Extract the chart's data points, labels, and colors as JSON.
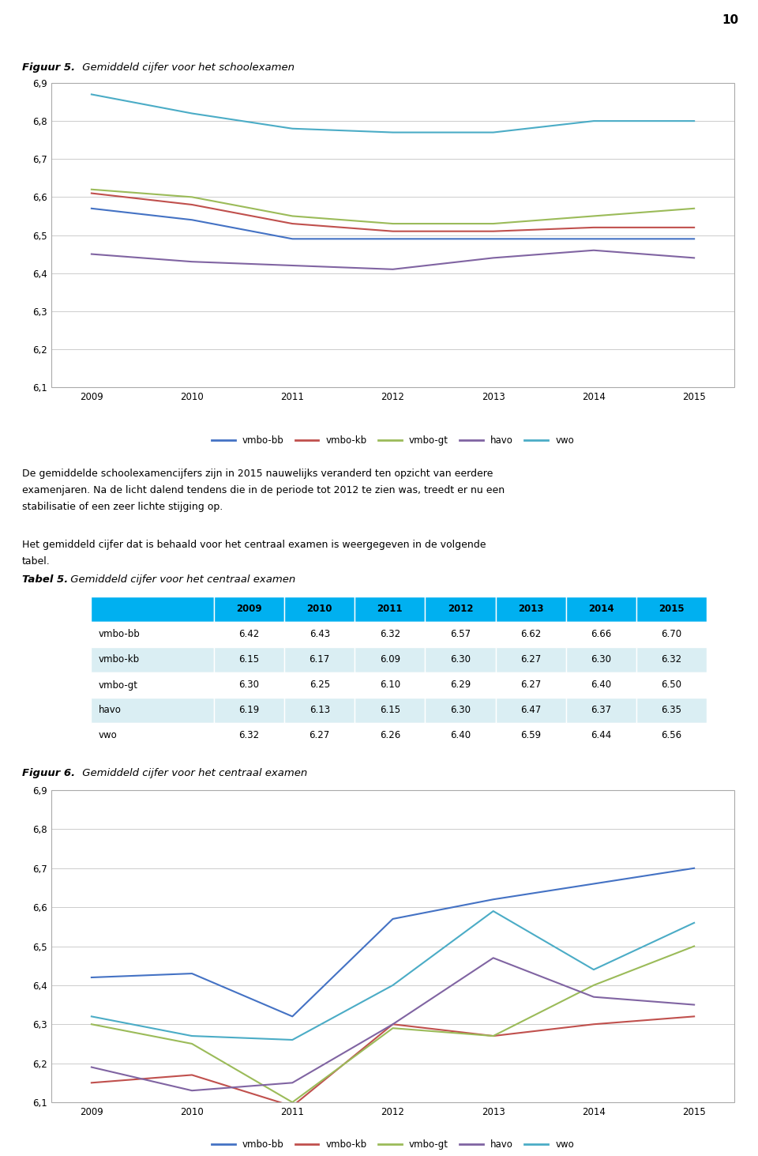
{
  "page_number": "10",
  "fig5_title_bold": "Figuur 5.",
  "fig5_title_rest": " Gemiddeld cijfer voor het schoolexamen",
  "fig6_title_bold": "Figuur 6.",
  "fig6_title_rest": " Gemiddeld cijfer voor het centraal examen",
  "tabel5_title_bold": "Tabel 5.",
  "tabel5_title_rest": " Gemiddeld cijfer voor het centraal examen",
  "years": [
    2009,
    2010,
    2011,
    2012,
    2013,
    2014,
    2015
  ],
  "series_colors": {
    "vmbo-bb": "#4472C4",
    "vmbo-kb": "#C0504D",
    "vmbo-gt": "#9BBB59",
    "havo": "#8064A2",
    "vwo": "#4BACC6"
  },
  "fig5_data": {
    "vmbo-bb": [
      6.57,
      6.54,
      6.49,
      6.49,
      6.49,
      6.49,
      6.49
    ],
    "vmbo-kb": [
      6.61,
      6.58,
      6.53,
      6.51,
      6.51,
      6.52,
      6.52
    ],
    "vmbo-gt": [
      6.62,
      6.6,
      6.55,
      6.53,
      6.53,
      6.55,
      6.57
    ],
    "havo": [
      6.45,
      6.43,
      6.42,
      6.41,
      6.44,
      6.46,
      6.44
    ],
    "vwo": [
      6.87,
      6.82,
      6.78,
      6.77,
      6.77,
      6.8,
      6.8
    ]
  },
  "fig6_data": {
    "vmbo-bb": [
      6.42,
      6.43,
      6.32,
      6.57,
      6.62,
      6.66,
      6.7
    ],
    "vmbo-kb": [
      6.15,
      6.17,
      6.09,
      6.3,
      6.27,
      6.3,
      6.32
    ],
    "vmbo-gt": [
      6.3,
      6.25,
      6.1,
      6.29,
      6.27,
      6.4,
      6.5
    ],
    "havo": [
      6.19,
      6.13,
      6.15,
      6.3,
      6.47,
      6.37,
      6.35
    ],
    "vwo": [
      6.32,
      6.27,
      6.26,
      6.4,
      6.59,
      6.44,
      6.56
    ]
  },
  "tabel5_data": {
    "header": [
      "",
      "2009",
      "2010",
      "2011",
      "2012",
      "2013",
      "2014",
      "2015"
    ],
    "rows": [
      [
        "vmbo-bb",
        "6.42",
        "6.43",
        "6.32",
        "6.57",
        "6.62",
        "6.66",
        "6.70"
      ],
      [
        "vmbo-kb",
        "6.15",
        "6.17",
        "6.09",
        "6.30",
        "6.27",
        "6.30",
        "6.32"
      ],
      [
        "vmbo-gt",
        "6.30",
        "6.25",
        "6.10",
        "6.29",
        "6.27",
        "6.40",
        "6.50"
      ],
      [
        "havo",
        "6.19",
        "6.13",
        "6.15",
        "6.30",
        "6.47",
        "6.37",
        "6.35"
      ],
      [
        "vwo",
        "6.32",
        "6.27",
        "6.26",
        "6.40",
        "6.59",
        "6.44",
        "6.56"
      ]
    ]
  },
  "paragraph1_line1": "De gemiddelde schoolexamencijfers zijn in 2015 nauwelijks veranderd ten opzicht van eerdere",
  "paragraph1_line2": "examenjaren. Na de licht dalend tendens die in de periode tot 2012 te zien was, treedt er nu een",
  "paragraph1_line3": "stabilisatie of een zeer lichte stijging op.",
  "paragraph2_line1": "Het gemiddeld cijfer dat is behaald voor het centraal examen is weergegeven in de volgende",
  "paragraph2_line2": "tabel.",
  "fig5_ylim": [
    6.1,
    6.9
  ],
  "fig6_ylim": [
    6.1,
    6.9
  ],
  "fig_yticks": [
    6.1,
    6.2,
    6.3,
    6.4,
    6.5,
    6.6,
    6.7,
    6.8,
    6.9
  ],
  "table_header_bg": "#00B0F0",
  "table_alt_bg": "#DAEEF3"
}
